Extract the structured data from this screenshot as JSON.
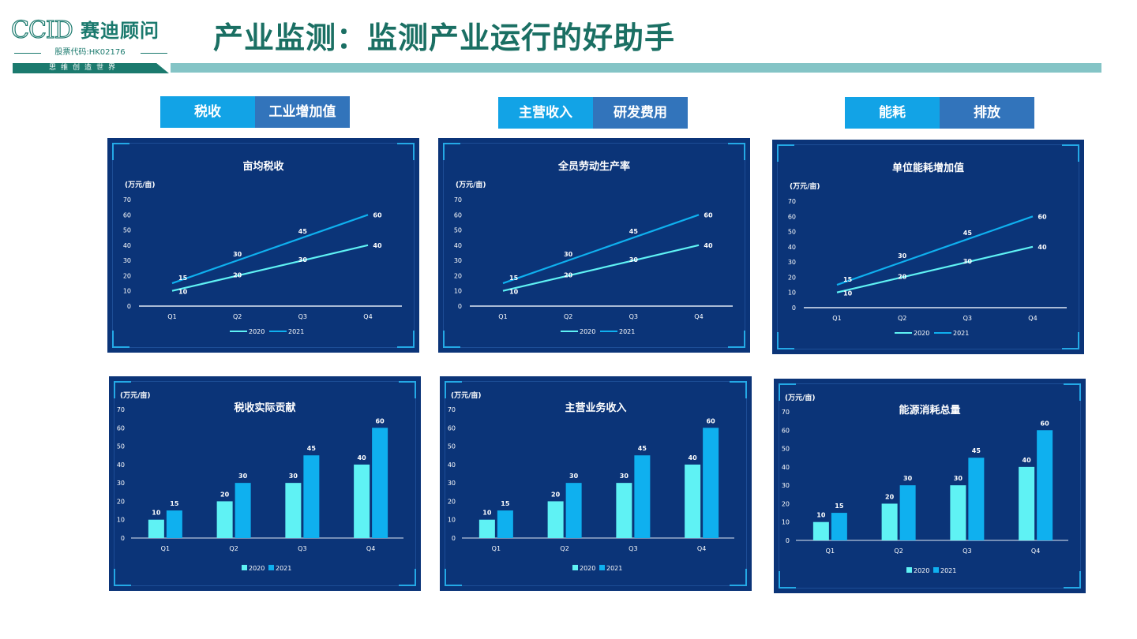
{
  "logo": {
    "english": "CCID",
    "chinese": "赛迪顾问",
    "stock_code": "股票代码:HK02176",
    "slogan": "思维创造世界"
  },
  "page_title": "产业监测：监测产业运行的好助手",
  "colors": {
    "title_green": "#1a6f63",
    "header_bar": "#84c4c6",
    "tab_active": "#12a3e6",
    "tab_inactive": "#3274bb",
    "panel_bg": "#0b3478",
    "series_2020": "#5ff2f4",
    "series_2021": "#0fb0ef"
  },
  "tab_groups": [
    {
      "tabs": [
        {
          "label": "税收",
          "active": true
        },
        {
          "label": "工业增加值",
          "active": false
        }
      ]
    },
    {
      "tabs": [
        {
          "label": "主营收入",
          "active": true
        },
        {
          "label": "研发费用",
          "active": false
        }
      ]
    },
    {
      "tabs": [
        {
          "label": "能耗",
          "active": true
        },
        {
          "label": "排放",
          "active": false
        }
      ]
    }
  ],
  "chart_data": [
    {
      "type": "line",
      "title": "亩均税收",
      "unit": "(万元/亩)",
      "categories": [
        "Q1",
        "Q2",
        "Q3",
        "Q4"
      ],
      "ylim": [
        0,
        70
      ],
      "yticks": [
        0,
        10,
        20,
        30,
        40,
        50,
        60,
        70
      ],
      "series": [
        {
          "name": "2020",
          "values": [
            10,
            20,
            30,
            40
          ]
        },
        {
          "name": "2021",
          "values": [
            15,
            30,
            45,
            60
          ]
        }
      ],
      "legend": "bottom",
      "grid": false
    },
    {
      "type": "line",
      "title": "全员劳动生产率",
      "unit": "(万元/亩)",
      "categories": [
        "Q1",
        "Q2",
        "Q3",
        "Q4"
      ],
      "ylim": [
        0,
        70
      ],
      "yticks": [
        0,
        10,
        20,
        30,
        40,
        50,
        60,
        70
      ],
      "series": [
        {
          "name": "2020",
          "values": [
            10,
            20,
            30,
            40
          ]
        },
        {
          "name": "2021",
          "values": [
            15,
            30,
            45,
            60
          ]
        }
      ],
      "legend": "bottom",
      "grid": false
    },
    {
      "type": "line",
      "title": "单位能耗增加值",
      "unit": "(万元/亩)",
      "categories": [
        "Q1",
        "Q2",
        "Q3",
        "Q4"
      ],
      "ylim": [
        0,
        70
      ],
      "yticks": [
        0,
        10,
        20,
        30,
        40,
        50,
        60,
        70
      ],
      "series": [
        {
          "name": "2020",
          "values": [
            10,
            20,
            30,
            40
          ]
        },
        {
          "name": "2021",
          "values": [
            15,
            30,
            45,
            60
          ]
        }
      ],
      "legend": "bottom",
      "grid": false
    },
    {
      "type": "bar",
      "title": "税收实际贡献",
      "unit": "(万元/亩)",
      "categories": [
        "Q1",
        "Q2",
        "Q3",
        "Q4"
      ],
      "ylim": [
        0,
        70
      ],
      "yticks": [
        0,
        10,
        20,
        30,
        40,
        50,
        60,
        70
      ],
      "series": [
        {
          "name": "2020",
          "values": [
            10,
            20,
            30,
            40
          ]
        },
        {
          "name": "2021",
          "values": [
            15,
            30,
            45,
            60
          ]
        }
      ],
      "legend": "bottom",
      "grid": false
    },
    {
      "type": "bar",
      "title": "主营业务收入",
      "unit": "(万元/亩)",
      "categories": [
        "Q1",
        "Q2",
        "Q3",
        "Q4"
      ],
      "ylim": [
        0,
        70
      ],
      "yticks": [
        0,
        10,
        20,
        30,
        40,
        50,
        60,
        70
      ],
      "series": [
        {
          "name": "2020",
          "values": [
            10,
            20,
            30,
            40
          ]
        },
        {
          "name": "2021",
          "values": [
            15,
            30,
            45,
            60
          ]
        }
      ],
      "legend": "bottom",
      "grid": false
    },
    {
      "type": "bar",
      "title": "能源消耗总量",
      "unit": "(万元/亩)",
      "categories": [
        "Q1",
        "Q2",
        "Q3",
        "Q4"
      ],
      "ylim": [
        0,
        70
      ],
      "yticks": [
        0,
        10,
        20,
        30,
        40,
        50,
        60,
        70
      ],
      "series": [
        {
          "name": "2020",
          "values": [
            10,
            20,
            30,
            40
          ]
        },
        {
          "name": "2021",
          "values": [
            15,
            30,
            45,
            60
          ]
        }
      ],
      "legend": "bottom",
      "grid": false
    }
  ]
}
